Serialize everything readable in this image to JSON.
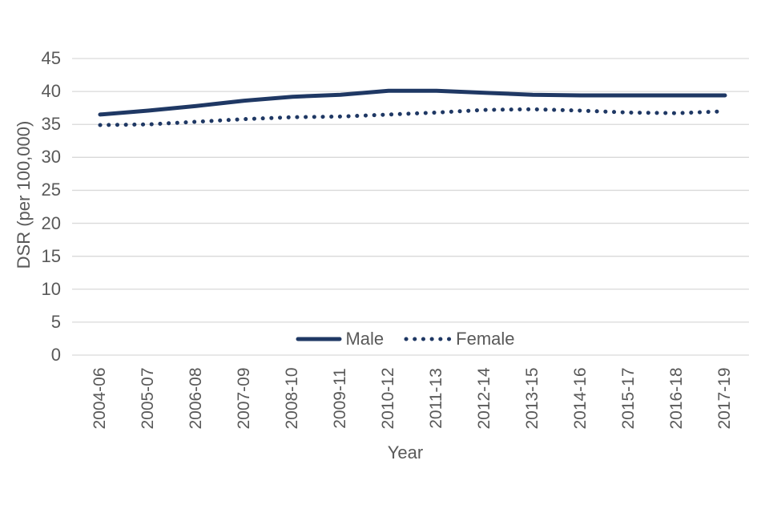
{
  "chart_data": {
    "type": "line",
    "title": "",
    "xlabel": "Year",
    "ylabel": "DSR (per 100,000)",
    "ylim": [
      0,
      45
    ],
    "yticks": [
      0,
      5,
      10,
      15,
      20,
      25,
      30,
      35,
      40,
      45
    ],
    "grid": "horizontal gridlines only",
    "legend_position": "bottom center, inside plot area",
    "categories": [
      "2004-06",
      "2005-07",
      "2006-08",
      "2007-09",
      "2008-10",
      "2009-11",
      "2010-12",
      "2011-13",
      "2012-14",
      "2013-15",
      "2014-16",
      "2015-17",
      "2016-18",
      "2017-19"
    ],
    "series": [
      {
        "name": "Male",
        "line_style": "solid",
        "color": "#1f3864",
        "values": [
          36.5,
          37.1,
          37.8,
          38.6,
          39.2,
          39.5,
          40.1,
          40.1,
          39.8,
          39.5,
          39.4,
          39.4,
          39.4,
          39.4
        ]
      },
      {
        "name": "Female",
        "line_style": "dotted",
        "color": "#1f3864",
        "values": [
          34.9,
          35.0,
          35.4,
          35.8,
          36.1,
          36.2,
          36.5,
          36.8,
          37.2,
          37.3,
          37.1,
          36.8,
          36.7,
          37.0
        ]
      }
    ]
  },
  "colors": {
    "line": "#1f3864",
    "gridline": "#d9d9d9",
    "axis_text": "#595959",
    "background": "#ffffff"
  }
}
